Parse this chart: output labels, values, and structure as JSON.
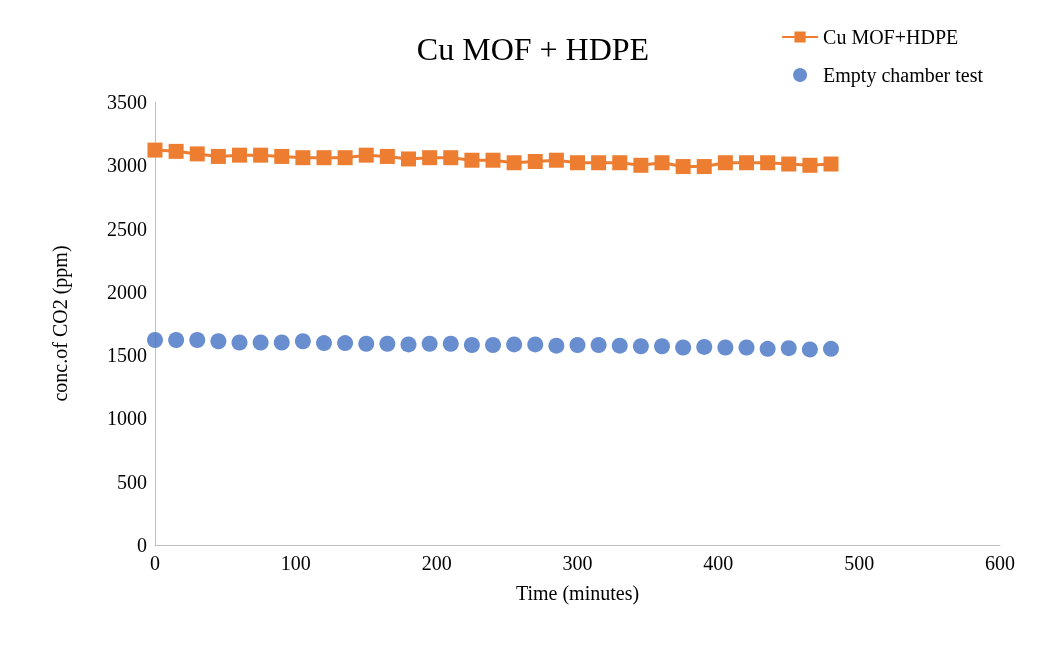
{
  "chart_data": {
    "type": "line",
    "title": "Cu MOF + HDPE",
    "xlabel": "Time (minutes)",
    "ylabel": "conc.of CO2 (ppm)",
    "x": [
      0,
      15,
      30,
      45,
      60,
      75,
      90,
      105,
      120,
      135,
      150,
      165,
      180,
      195,
      210,
      225,
      240,
      255,
      270,
      285,
      300,
      315,
      330,
      345,
      360,
      375,
      390,
      405,
      420,
      435,
      450,
      465,
      480
    ],
    "series": [
      {
        "name": "Cu MOF+HDPE",
        "marker": "square",
        "color": "#ed7d31",
        "values": [
          3120,
          3110,
          3090,
          3070,
          3080,
          3080,
          3070,
          3060,
          3060,
          3060,
          3080,
          3070,
          3050,
          3060,
          3060,
          3040,
          3040,
          3020,
          3030,
          3040,
          3020,
          3020,
          3020,
          3000,
          3020,
          2990,
          2990,
          3020,
          3020,
          3020,
          3010,
          3000,
          3010
        ]
      },
      {
        "name": "Empty chamber test",
        "type": "scatter",
        "marker": "circle",
        "color": "#4472c4",
        "values": [
          1620,
          1620,
          1620,
          1610,
          1600,
          1600,
          1600,
          1610,
          1595,
          1595,
          1590,
          1590,
          1585,
          1590,
          1590,
          1580,
          1580,
          1585,
          1585,
          1575,
          1580,
          1580,
          1575,
          1570,
          1570,
          1560,
          1565,
          1560,
          1560,
          1550,
          1555,
          1545,
          1550
        ]
      }
    ],
    "xlim": [
      0,
      600
    ],
    "xticks": [
      0,
      100,
      200,
      300,
      400,
      500,
      600
    ],
    "ylim": [
      0,
      3500
    ],
    "yticks": [
      0,
      500,
      1000,
      1500,
      2000,
      2500,
      3000,
      3500
    ],
    "grid": false,
    "legend": "top right"
  }
}
